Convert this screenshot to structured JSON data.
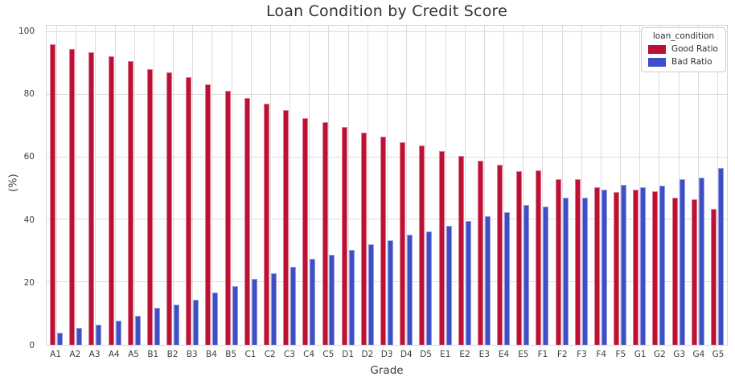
{
  "chart_data": {
    "type": "bar",
    "title": "Loan Condition by Credit Score",
    "xlabel": "Grade",
    "ylabel": "(%)",
    "ylim": [
      0,
      100
    ],
    "yticks": [
      0,
      20,
      40,
      60,
      80,
      100
    ],
    "grid": true,
    "legend_title": "loan_condition",
    "legend_position": "upper right",
    "categories": [
      "A1",
      "A2",
      "A3",
      "A4",
      "A5",
      "B1",
      "B2",
      "B3",
      "B4",
      "B5",
      "C1",
      "C2",
      "C3",
      "C4",
      "C5",
      "D1",
      "D2",
      "D3",
      "D4",
      "D5",
      "E1",
      "E2",
      "E3",
      "E4",
      "E5",
      "F1",
      "F2",
      "F3",
      "F4",
      "F5",
      "G1",
      "G2",
      "G3",
      "G4",
      "G5"
    ],
    "series": [
      {
        "name": "Good Ratio",
        "color": "#bd1035",
        "values": [
          96.1,
          94.6,
          93.5,
          92.2,
          90.7,
          88.1,
          87.2,
          85.6,
          83.4,
          81.2,
          78.9,
          77.2,
          75.0,
          72.4,
          71.2,
          69.7,
          67.8,
          66.6,
          64.8,
          63.8,
          61.9,
          60.5,
          58.9,
          57.7,
          55.4,
          55.9,
          52.9,
          53.0,
          50.4,
          48.8,
          49.5,
          49.0,
          47.1,
          46.5,
          43.5
        ]
      },
      {
        "name": "Bad Ratio",
        "color": "#3d4ec6",
        "values": [
          3.9,
          5.4,
          6.5,
          7.8,
          9.3,
          11.9,
          12.8,
          14.4,
          16.6,
          18.8,
          21.1,
          22.8,
          25.0,
          27.6,
          28.8,
          30.3,
          32.2,
          33.4,
          35.2,
          36.2,
          38.1,
          39.5,
          41.1,
          42.3,
          44.6,
          44.1,
          47.1,
          47.0,
          49.6,
          51.2,
          50.5,
          51.0,
          52.9,
          53.5,
          56.5
        ]
      }
    ]
  }
}
